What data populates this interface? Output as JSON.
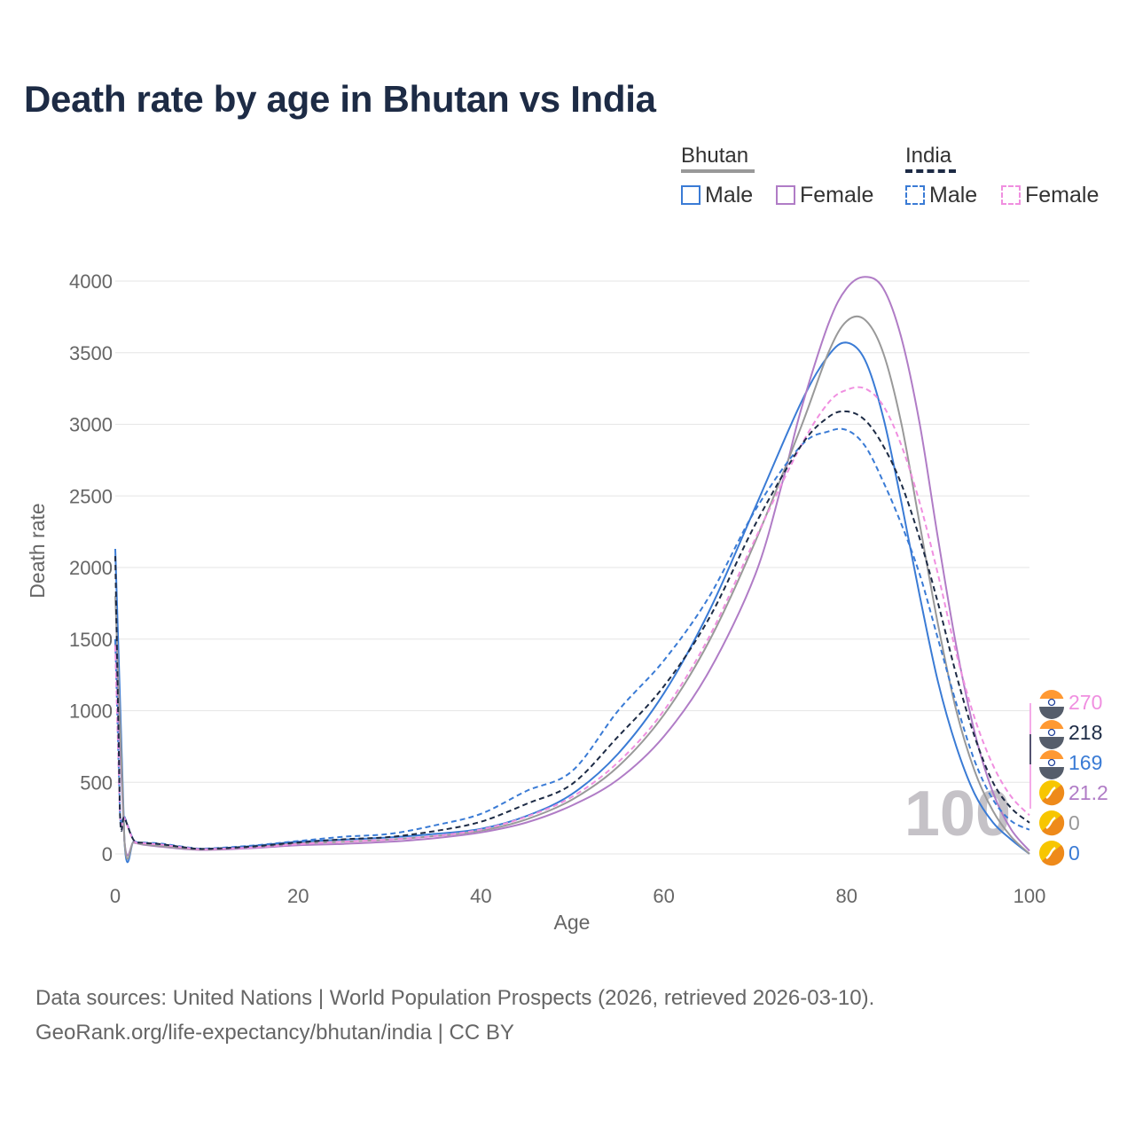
{
  "title": "Death rate by age in Bhutan vs India",
  "legend": {
    "groups": [
      {
        "name": "Bhutan",
        "line_color": "#999999",
        "dashed": false
      },
      {
        "name": "India",
        "line_color": "#1d2b45",
        "dashed": true
      }
    ],
    "items": [
      {
        "label": "Male",
        "color": "#3a7bd5",
        "dashed": false
      },
      {
        "label": "Female",
        "color": "#b07cc6",
        "dashed": false
      },
      {
        "label": "Male",
        "color": "#3a7bd5",
        "dashed": true
      },
      {
        "label": "Female",
        "color": "#f08fe0",
        "dashed": true
      }
    ]
  },
  "sources": {
    "line1": "Data sources: United Nations | World Population Prospects (2026, retrieved 2026-03-10).",
    "line2": "GeoRank.org/life-expectancy/bhutan/india | CC BY"
  },
  "chart_data": {
    "type": "line",
    "title": "Death rate by age in Bhutan vs India",
    "xlabel": "Age",
    "ylabel": "Death rate",
    "xlim": [
      0,
      100
    ],
    "ylim": [
      0,
      4000
    ],
    "xticks": [
      0,
      20,
      40,
      60,
      80,
      100
    ],
    "yticks": [
      0,
      500,
      1000,
      1500,
      2000,
      2500,
      3000,
      3500,
      4000
    ],
    "grid": true,
    "watermark": "100",
    "series": [
      {
        "name": "Bhutan Male",
        "color": "#3a7bd5",
        "dashed": false,
        "points": [
          [
            0,
            2130
          ],
          [
            1,
            95
          ],
          [
            2,
            85
          ],
          [
            3,
            70
          ],
          [
            5,
            58
          ],
          [
            8,
            40
          ],
          [
            10,
            35
          ],
          [
            15,
            55
          ],
          [
            20,
            85
          ],
          [
            25,
            100
          ],
          [
            30,
            115
          ],
          [
            35,
            140
          ],
          [
            40,
            175
          ],
          [
            45,
            265
          ],
          [
            50,
            420
          ],
          [
            55,
            700
          ],
          [
            60,
            1120
          ],
          [
            65,
            1700
          ],
          [
            70,
            2420
          ],
          [
            75,
            3150
          ],
          [
            78,
            3480
          ],
          [
            80,
            3570
          ],
          [
            82,
            3450
          ],
          [
            84,
            3050
          ],
          [
            86,
            2450
          ],
          [
            88,
            1800
          ],
          [
            90,
            1200
          ],
          [
            92,
            750
          ],
          [
            94,
            420
          ],
          [
            96,
            220
          ],
          [
            98,
            100
          ],
          [
            100,
            0
          ]
        ]
      },
      {
        "name": "Bhutan Female",
        "color": "#b07cc6",
        "dashed": false,
        "points": [
          [
            0,
            1470
          ],
          [
            1,
            95
          ],
          [
            2,
            80
          ],
          [
            3,
            65
          ],
          [
            5,
            50
          ],
          [
            8,
            32
          ],
          [
            10,
            28
          ],
          [
            15,
            40
          ],
          [
            20,
            60
          ],
          [
            25,
            70
          ],
          [
            30,
            85
          ],
          [
            35,
            110
          ],
          [
            40,
            150
          ],
          [
            45,
            220
          ],
          [
            50,
            340
          ],
          [
            55,
            520
          ],
          [
            60,
            820
          ],
          [
            65,
            1280
          ],
          [
            70,
            1950
          ],
          [
            73,
            2600
          ],
          [
            75,
            3100
          ],
          [
            78,
            3700
          ],
          [
            80,
            3950
          ],
          [
            82,
            4030
          ],
          [
            84,
            3950
          ],
          [
            86,
            3600
          ],
          [
            88,
            3000
          ],
          [
            90,
            2200
          ],
          [
            92,
            1450
          ],
          [
            94,
            850
          ],
          [
            96,
            430
          ],
          [
            98,
            170
          ],
          [
            100,
            21.2
          ]
        ]
      },
      {
        "name": "Bhutan total",
        "color": "#999999",
        "dashed": false,
        "points": [
          [
            0,
            1800
          ],
          [
            1,
            95
          ],
          [
            2,
            82
          ],
          [
            3,
            68
          ],
          [
            5,
            55
          ],
          [
            8,
            36
          ],
          [
            10,
            31
          ],
          [
            15,
            48
          ],
          [
            20,
            72
          ],
          [
            25,
            85
          ],
          [
            30,
            100
          ],
          [
            35,
            125
          ],
          [
            40,
            162
          ],
          [
            45,
            242
          ],
          [
            50,
            380
          ],
          [
            55,
            610
          ],
          [
            60,
            970
          ],
          [
            65,
            1490
          ],
          [
            70,
            2180
          ],
          [
            75,
            2980
          ],
          [
            78,
            3500
          ],
          [
            80,
            3720
          ],
          [
            82,
            3730
          ],
          [
            84,
            3500
          ],
          [
            86,
            3000
          ],
          [
            88,
            2300
          ],
          [
            90,
            1600
          ],
          [
            92,
            1000
          ],
          [
            94,
            580
          ],
          [
            96,
            300
          ],
          [
            98,
            120
          ],
          [
            100,
            0
          ]
        ]
      },
      {
        "name": "India Male",
        "color": "#3a7bd5",
        "dashed": true,
        "points": [
          [
            0,
            1500
          ],
          [
            0.5,
            300
          ],
          [
            1,
            260
          ],
          [
            2,
            100
          ],
          [
            3,
            80
          ],
          [
            5,
            72
          ],
          [
            8,
            45
          ],
          [
            10,
            38
          ],
          [
            15,
            58
          ],
          [
            20,
            90
          ],
          [
            25,
            120
          ],
          [
            30,
            140
          ],
          [
            35,
            200
          ],
          [
            40,
            280
          ],
          [
            45,
            440
          ],
          [
            50,
            580
          ],
          [
            55,
            1000
          ],
          [
            60,
            1350
          ],
          [
            65,
            1800
          ],
          [
            70,
            2400
          ],
          [
            75,
            2850
          ],
          [
            78,
            2950
          ],
          [
            80,
            2960
          ],
          [
            82,
            2850
          ],
          [
            84,
            2600
          ],
          [
            86,
            2300
          ],
          [
            88,
            1950
          ],
          [
            90,
            1500
          ],
          [
            92,
            1050
          ],
          [
            94,
            650
          ],
          [
            96,
            380
          ],
          [
            98,
            230
          ],
          [
            100,
            169
          ]
        ]
      },
      {
        "name": "India Female",
        "color": "#f08fe0",
        "dashed": true,
        "points": [
          [
            0,
            1450
          ],
          [
            0.5,
            290
          ],
          [
            1,
            250
          ],
          [
            2,
            95
          ],
          [
            3,
            75
          ],
          [
            5,
            65
          ],
          [
            8,
            40
          ],
          [
            10,
            33
          ],
          [
            15,
            45
          ],
          [
            20,
            68
          ],
          [
            25,
            85
          ],
          [
            30,
            100
          ],
          [
            35,
            125
          ],
          [
            40,
            170
          ],
          [
            45,
            260
          ],
          [
            50,
            400
          ],
          [
            55,
            640
          ],
          [
            60,
            1000
          ],
          [
            65,
            1520
          ],
          [
            70,
            2200
          ],
          [
            75,
            2850
          ],
          [
            78,
            3150
          ],
          [
            80,
            3240
          ],
          [
            82,
            3250
          ],
          [
            84,
            3130
          ],
          [
            86,
            2850
          ],
          [
            88,
            2450
          ],
          [
            90,
            1950
          ],
          [
            92,
            1400
          ],
          [
            94,
            950
          ],
          [
            96,
            620
          ],
          [
            98,
            400
          ],
          [
            100,
            270
          ]
        ]
      },
      {
        "name": "India total",
        "color": "#1d2b45",
        "dashed": true,
        "points": [
          [
            0,
            2080
          ],
          [
            0.5,
            300
          ],
          [
            1,
            255
          ],
          [
            2,
            98
          ],
          [
            3,
            78
          ],
          [
            5,
            68
          ],
          [
            8,
            42
          ],
          [
            10,
            35
          ],
          [
            15,
            52
          ],
          [
            20,
            80
          ],
          [
            25,
            102
          ],
          [
            30,
            118
          ],
          [
            35,
            160
          ],
          [
            40,
            225
          ],
          [
            45,
            350
          ],
          [
            50,
            490
          ],
          [
            55,
            820
          ],
          [
            60,
            1170
          ],
          [
            65,
            1650
          ],
          [
            70,
            2300
          ],
          [
            75,
            2850
          ],
          [
            78,
            3050
          ],
          [
            80,
            3090
          ],
          [
            82,
            3030
          ],
          [
            84,
            2850
          ],
          [
            86,
            2580
          ],
          [
            88,
            2200
          ],
          [
            90,
            1750
          ],
          [
            92,
            1250
          ],
          [
            94,
            820
          ],
          [
            96,
            500
          ],
          [
            98,
            320
          ],
          [
            100,
            218
          ]
        ]
      }
    ],
    "end_labels": [
      {
        "value": "270",
        "color": "#f08fe0",
        "icon": "india-flag-icon"
      },
      {
        "value": "218",
        "color": "#1d2b45",
        "icon": "india-flag-icon"
      },
      {
        "value": "169",
        "color": "#3a7bd5",
        "icon": "india-flag-icon"
      },
      {
        "value": "21.2",
        "color": "#b07cc6",
        "icon": "bhutan-flag-icon"
      },
      {
        "value": "0",
        "color": "#999999",
        "icon": "bhutan-flag-icon"
      },
      {
        "value": "0",
        "color": "#3a7bd5",
        "icon": "bhutan-flag-icon"
      }
    ]
  }
}
